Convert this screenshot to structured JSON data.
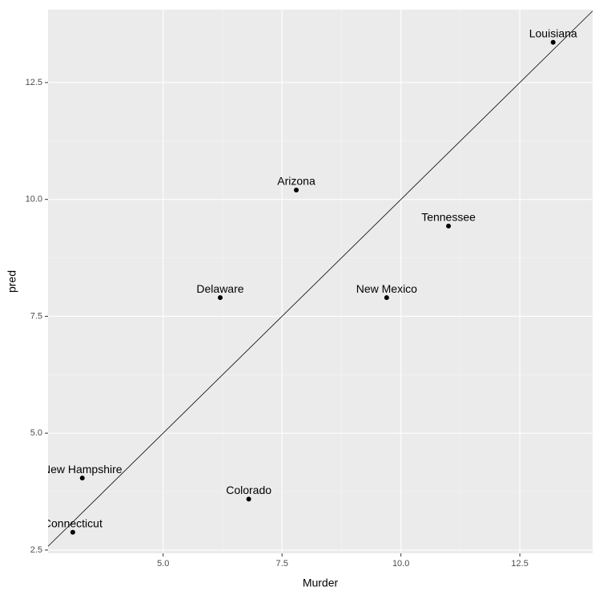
{
  "chart_data": {
    "type": "scatter",
    "x_label": "Murder",
    "y_label": "pred",
    "xlim": [
      2.58,
      14.03
    ],
    "ylim": [
      2.43,
      14.06
    ],
    "xticks": [
      {
        "value": 5,
        "label": "5.0"
      },
      7.5,
      {
        "value": 10,
        "label": "10.0"
      },
      12.5
    ],
    "yticks": [
      2.5,
      {
        "value": 5,
        "label": "5.0"
      },
      7.5,
      {
        "value": 10,
        "label": "10.0"
      },
      12.5
    ],
    "grid": true,
    "color": "#000000",
    "point_labels": [
      "Louisiana",
      "Arizona",
      "Tennessee",
      "Delaware",
      "New Mexico",
      "New Hampshire",
      "Colorado",
      "Connecticut"
    ],
    "x": [
      13.2,
      7.8,
      11.0,
      6.2,
      9.7,
      3.3,
      6.8,
      3.1
    ],
    "values": [
      13.36,
      10.2,
      9.43,
      7.9,
      7.9,
      4.04,
      3.59,
      2.88
    ],
    "reference_line": {
      "slope": 1,
      "intercept": 0
    }
  }
}
